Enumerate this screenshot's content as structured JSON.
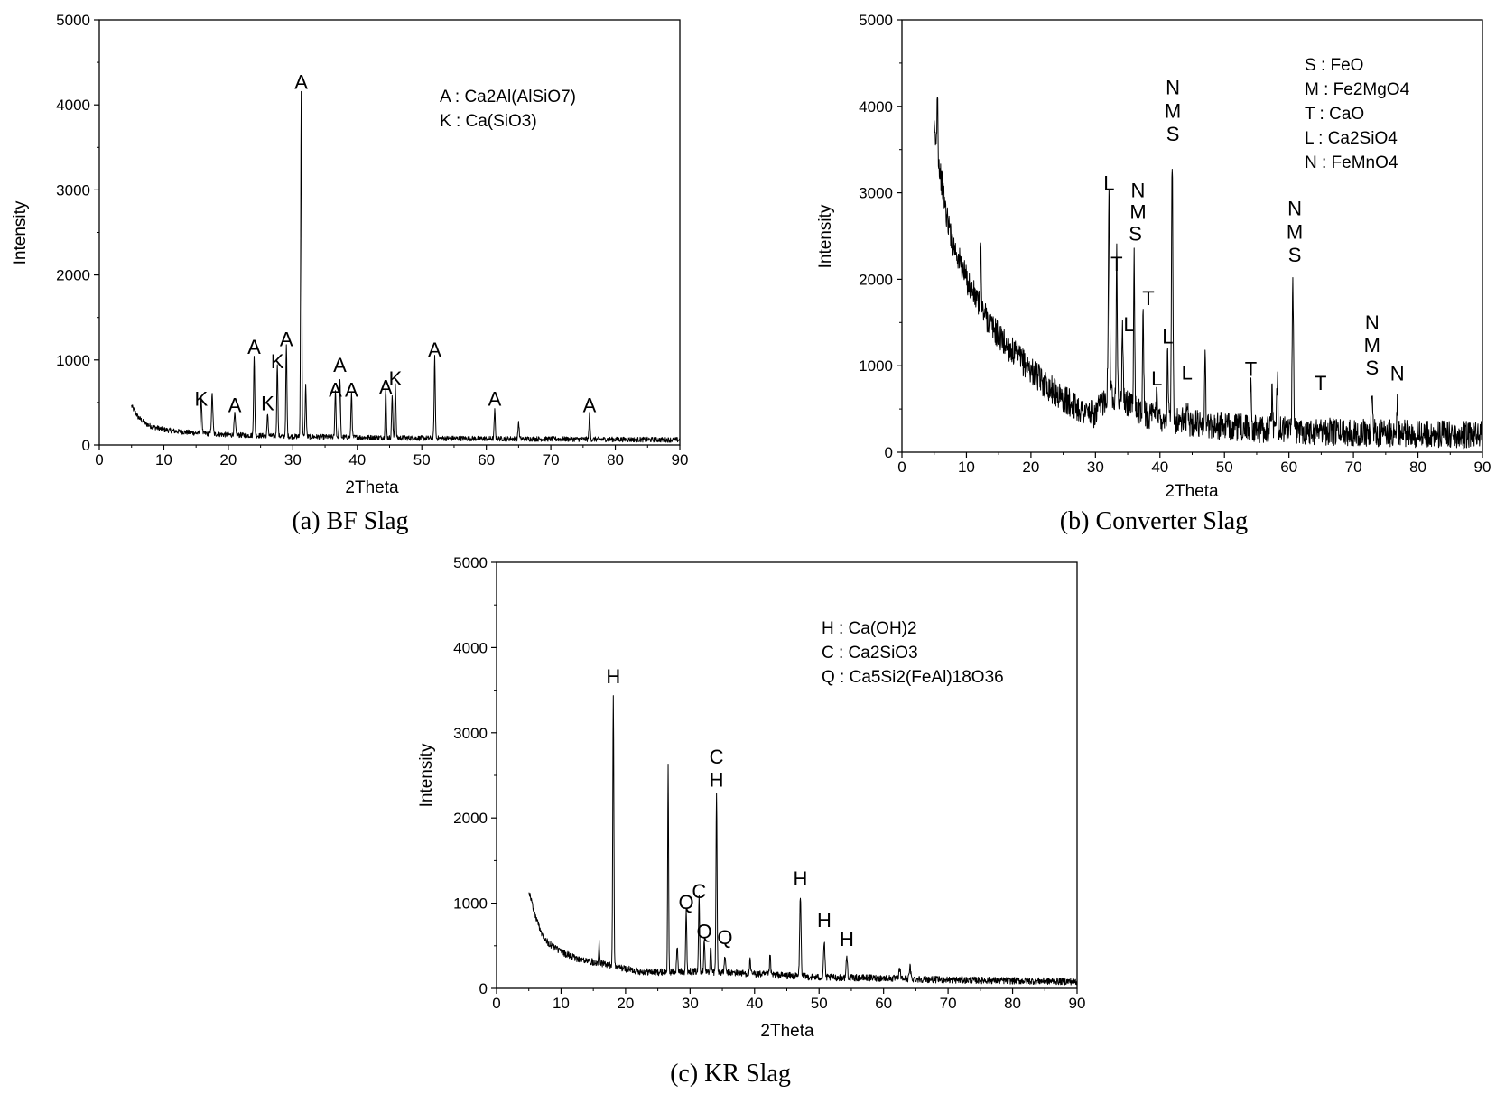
{
  "chart_data": [
    {
      "type": "line",
      "caption": "(a) BF Slag",
      "xlabel": "2Theta",
      "ylabel": "Intensity",
      "xlim": [
        0,
        90
      ],
      "ylim": [
        0,
        5000
      ],
      "x_ticks": [
        "0",
        "10",
        "20",
        "30",
        "40",
        "50",
        "60",
        "70",
        "80",
        "90"
      ],
      "y_ticks": [
        "0",
        "1000",
        "2000",
        "3000",
        "4000",
        "5000"
      ],
      "legend": [
        "A : Ca2Al(AlSiO7)",
        "K : Ca(SiO3)"
      ],
      "baseline": [
        [
          5,
          460
        ],
        [
          6,
          330
        ],
        [
          7,
          260
        ],
        [
          8,
          220
        ],
        [
          10,
          180
        ],
        [
          12,
          160
        ],
        [
          15,
          140
        ],
        [
          20,
          120
        ],
        [
          25,
          110
        ],
        [
          30,
          100
        ],
        [
          40,
          90
        ],
        [
          50,
          80
        ],
        [
          60,
          75
        ],
        [
          70,
          70
        ],
        [
          80,
          65
        ],
        [
          90,
          60
        ]
      ],
      "noise": 30,
      "peaks": [
        {
          "x": 15.8,
          "y": 400,
          "w": 0.15
        },
        {
          "x": 17.5,
          "y": 460,
          "w": 0.15
        },
        {
          "x": 21.0,
          "y": 240,
          "w": 0.15
        },
        {
          "x": 24.0,
          "y": 950,
          "w": 0.12
        },
        {
          "x": 26.1,
          "y": 260,
          "w": 0.12
        },
        {
          "x": 27.6,
          "y": 860,
          "w": 0.12
        },
        {
          "x": 29.0,
          "y": 1060,
          "w": 0.12
        },
        {
          "x": 31.3,
          "y": 4070,
          "w": 0.12
        },
        {
          "x": 32.0,
          "y": 600,
          "w": 0.12
        },
        {
          "x": 36.6,
          "y": 560,
          "w": 0.12
        },
        {
          "x": 37.3,
          "y": 700,
          "w": 0.12
        },
        {
          "x": 39.1,
          "y": 520,
          "w": 0.12
        },
        {
          "x": 44.4,
          "y": 580,
          "w": 0.12
        },
        {
          "x": 45.4,
          "y": 500,
          "w": 0.12
        },
        {
          "x": 45.9,
          "y": 640,
          "w": 0.12
        },
        {
          "x": 52.0,
          "y": 950,
          "w": 0.12
        },
        {
          "x": 61.3,
          "y": 330,
          "w": 0.12
        },
        {
          "x": 65.0,
          "y": 200,
          "w": 0.12
        },
        {
          "x": 76.0,
          "y": 290,
          "w": 0.12
        }
      ],
      "labels": [
        {
          "t": "K",
          "x": 15.8,
          "y": 460
        },
        {
          "t": "A",
          "x": 21.0,
          "y": 390
        },
        {
          "t": "A",
          "x": 24.0,
          "y": 1070
        },
        {
          "t": "K",
          "x": 26.1,
          "y": 410
        },
        {
          "t": "K",
          "x": 27.6,
          "y": 900
        },
        {
          "t": "A",
          "x": 29.0,
          "y": 1160
        },
        {
          "t": "A",
          "x": 31.3,
          "y": 4190
        },
        {
          "t": "A",
          "x": 36.6,
          "y": 570
        },
        {
          "t": "A",
          "x": 37.3,
          "y": 860
        },
        {
          "t": "A",
          "x": 39.1,
          "y": 570
        },
        {
          "t": "A",
          "x": 44.4,
          "y": 600
        },
        {
          "t": "K",
          "x": 45.9,
          "y": 700
        },
        {
          "t": "A",
          "x": 52.0,
          "y": 1040
        },
        {
          "t": "A",
          "x": 61.3,
          "y": 460
        },
        {
          "t": "A",
          "x": 76.0,
          "y": 390
        }
      ]
    },
    {
      "type": "line",
      "caption": "(b) Converter Slag",
      "xlabel": "2Theta",
      "ylabel": "Intensity",
      "xlim": [
        0,
        90
      ],
      "ylim": [
        0,
        5000
      ],
      "x_ticks": [
        "0",
        "10",
        "20",
        "30",
        "40",
        "50",
        "60",
        "70",
        "80",
        "90"
      ],
      "y_ticks": [
        "0",
        "1000",
        "2000",
        "3000",
        "4000",
        "5000"
      ],
      "legend": [
        "S : FeO",
        "M : Fe2MgO4",
        "T : CaO",
        "L : Ca2SiO4",
        "N : FeMnO4"
      ],
      "baseline": [
        [
          5,
          3700
        ],
        [
          6,
          3200
        ],
        [
          7,
          2700
        ],
        [
          8,
          2400
        ],
        [
          10,
          2000
        ],
        [
          12,
          1700
        ],
        [
          14,
          1450
        ],
        [
          16,
          1250
        ],
        [
          18,
          1100
        ],
        [
          20,
          950
        ],
        [
          22,
          800
        ],
        [
          25,
          620
        ],
        [
          28,
          480
        ],
        [
          30,
          430
        ],
        [
          32,
          700
        ],
        [
          34,
          600
        ],
        [
          36,
          500
        ],
        [
          38,
          430
        ],
        [
          40,
          400
        ],
        [
          45,
          340
        ],
        [
          50,
          300
        ],
        [
          55,
          270
        ],
        [
          60,
          260
        ],
        [
          65,
          240
        ],
        [
          70,
          230
        ],
        [
          80,
          210
        ],
        [
          90,
          200
        ]
      ],
      "noise": 160,
      "peaks": [
        {
          "x": 5.5,
          "y": 800,
          "w": 0.1
        },
        {
          "x": 12.2,
          "y": 800,
          "w": 0.1
        },
        {
          "x": 32.1,
          "y": 2300,
          "w": 0.15
        },
        {
          "x": 33.3,
          "y": 1700,
          "w": 0.12
        },
        {
          "x": 34.2,
          "y": 900,
          "w": 0.12
        },
        {
          "x": 36.0,
          "y": 1800,
          "w": 0.12
        },
        {
          "x": 37.4,
          "y": 1200,
          "w": 0.12
        },
        {
          "x": 39.5,
          "y": 400,
          "w": 0.12
        },
        {
          "x": 41.2,
          "y": 800,
          "w": 0.12
        },
        {
          "x": 41.9,
          "y": 3000,
          "w": 0.15
        },
        {
          "x": 44.2,
          "y": 250,
          "w": 0.12
        },
        {
          "x": 47.0,
          "y": 800,
          "w": 0.12
        },
        {
          "x": 54.1,
          "y": 600,
          "w": 0.12
        },
        {
          "x": 57.4,
          "y": 500,
          "w": 0.12
        },
        {
          "x": 58.2,
          "y": 650,
          "w": 0.12
        },
        {
          "x": 60.6,
          "y": 1700,
          "w": 0.15
        },
        {
          "x": 64.9,
          "y": 200,
          "w": 0.12
        },
        {
          "x": 72.9,
          "y": 500,
          "w": 0.15
        },
        {
          "x": 76.8,
          "y": 380,
          "w": 0.15
        }
      ],
      "labels": [
        {
          "t": "L",
          "x": 32.1,
          "y": 3030
        },
        {
          "t": "T",
          "x": 33.3,
          "y": 2100
        },
        {
          "t": "N",
          "x": 36.6,
          "y": 2950
        },
        {
          "t": "M",
          "x": 36.6,
          "y": 2700
        },
        {
          "t": "S",
          "x": 36.2,
          "y": 2450
        },
        {
          "t": "L",
          "x": 35.2,
          "y": 1400
        },
        {
          "t": "T",
          "x": 38.2,
          "y": 1700
        },
        {
          "t": "N",
          "x": 42.0,
          "y": 4140
        },
        {
          "t": "M",
          "x": 42.0,
          "y": 3870
        },
        {
          "t": "S",
          "x": 42.0,
          "y": 3600
        },
        {
          "t": "L",
          "x": 41.2,
          "y": 1260
        },
        {
          "t": "L",
          "x": 39.5,
          "y": 770
        },
        {
          "t": "L",
          "x": 44.2,
          "y": 840
        },
        {
          "t": "T",
          "x": 54.1,
          "y": 880
        },
        {
          "t": "N",
          "x": 60.9,
          "y": 2740
        },
        {
          "t": "M",
          "x": 60.9,
          "y": 2470
        },
        {
          "t": "S",
          "x": 60.9,
          "y": 2200
        },
        {
          "t": "T",
          "x": 64.9,
          "y": 720
        },
        {
          "t": "N",
          "x": 72.9,
          "y": 1420
        },
        {
          "t": "M",
          "x": 72.9,
          "y": 1160
        },
        {
          "t": "S",
          "x": 72.9,
          "y": 900
        },
        {
          "t": "N",
          "x": 76.8,
          "y": 830
        }
      ]
    },
    {
      "type": "line",
      "caption": "(c) KR Slag",
      "xlabel": "2Theta",
      "ylabel": "Intensity",
      "xlim": [
        0,
        90
      ],
      "ylim": [
        0,
        5000
      ],
      "x_ticks": [
        "0",
        "10",
        "20",
        "30",
        "40",
        "50",
        "60",
        "70",
        "80",
        "90"
      ],
      "y_ticks": [
        "0",
        "1000",
        "2000",
        "3000",
        "4000",
        "5000"
      ],
      "legend": [
        "H : Ca(OH)2",
        "C : Ca2SiO3",
        "Q : Ca5Si2(FeAl)18O36"
      ],
      "baseline": [
        [
          5,
          1150
        ],
        [
          6,
          850
        ],
        [
          7,
          650
        ],
        [
          8,
          530
        ],
        [
          10,
          430
        ],
        [
          12,
          360
        ],
        [
          14,
          320
        ],
        [
          16,
          300
        ],
        [
          18,
          260
        ],
        [
          20,
          230
        ],
        [
          22,
          200
        ],
        [
          25,
          190
        ],
        [
          30,
          200
        ],
        [
          35,
          190
        ],
        [
          40,
          170
        ],
        [
          50,
          130
        ],
        [
          60,
          120
        ],
        [
          70,
          100
        ],
        [
          80,
          90
        ],
        [
          90,
          80
        ]
      ],
      "noise": 40,
      "peaks": [
        {
          "x": 15.9,
          "y": 250,
          "w": 0.1
        },
        {
          "x": 18.1,
          "y": 3200,
          "w": 0.12
        },
        {
          "x": 26.6,
          "y": 2400,
          "w": 0.1
        },
        {
          "x": 28.0,
          "y": 300,
          "w": 0.12
        },
        {
          "x": 29.4,
          "y": 700,
          "w": 0.12
        },
        {
          "x": 31.4,
          "y": 900,
          "w": 0.12
        },
        {
          "x": 32.2,
          "y": 400,
          "w": 0.12
        },
        {
          "x": 33.2,
          "y": 300,
          "w": 0.12
        },
        {
          "x": 34.1,
          "y": 2100,
          "w": 0.12
        },
        {
          "x": 35.4,
          "y": 200,
          "w": 0.12
        },
        {
          "x": 39.3,
          "y": 150,
          "w": 0.12
        },
        {
          "x": 42.4,
          "y": 230,
          "w": 0.12
        },
        {
          "x": 47.1,
          "y": 950,
          "w": 0.15
        },
        {
          "x": 50.8,
          "y": 420,
          "w": 0.15
        },
        {
          "x": 54.3,
          "y": 250,
          "w": 0.15
        },
        {
          "x": 62.5,
          "y": 120,
          "w": 0.15
        },
        {
          "x": 64.1,
          "y": 140,
          "w": 0.15
        }
      ],
      "labels": [
        {
          "t": "H",
          "x": 18.1,
          "y": 3580
        },
        {
          "t": "Q",
          "x": 29.4,
          "y": 930
        },
        {
          "t": "C",
          "x": 31.4,
          "y": 1060
        },
        {
          "t": "Q",
          "x": 32.2,
          "y": 590
        },
        {
          "t": "Q",
          "x": 35.4,
          "y": 520
        },
        {
          "t": "C",
          "x": 34.1,
          "y": 2640
        },
        {
          "t": "H",
          "x": 34.1,
          "y": 2370
        },
        {
          "t": "H",
          "x": 47.1,
          "y": 1210
        },
        {
          "t": "H",
          "x": 50.8,
          "y": 720
        },
        {
          "t": "H",
          "x": 54.3,
          "y": 500
        }
      ]
    }
  ]
}
